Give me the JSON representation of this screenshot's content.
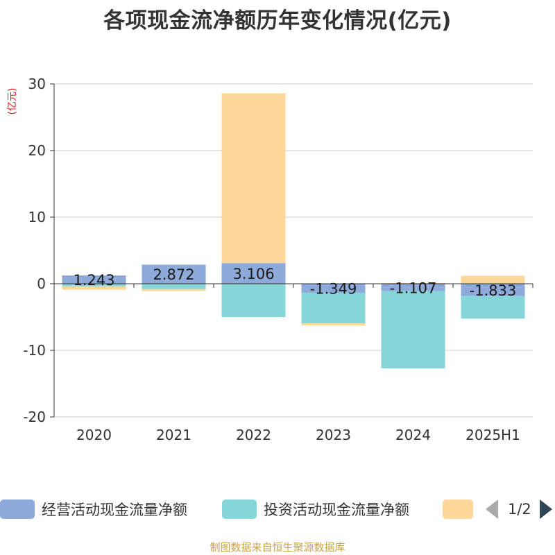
{
  "title": "各项现金流净额历年变化情况(亿元)",
  "unit_label": "(亿元)",
  "source": "制图数据来自恒生聚源数据库",
  "pager": {
    "text": "1/2"
  },
  "colors": {
    "operating": "#8eaadb",
    "investing": "#86d5d8",
    "financing": "#fdd89a",
    "unit_label": "#e8131c",
    "axis": "#333333",
    "grid": "#cccccc"
  },
  "chart_data": {
    "type": "bar",
    "stacked": true,
    "categories": [
      "2020",
      "2021",
      "2022",
      "2023",
      "2024",
      "2025H1"
    ],
    "ylim": [
      -20,
      30
    ],
    "yticks": [
      -20,
      -10,
      0,
      10,
      20,
      30
    ],
    "series": [
      {
        "name": "经营活动现金流量净额",
        "color_key": "operating",
        "values": [
          1.243,
          2.872,
          3.106,
          -1.349,
          -1.107,
          -1.833
        ],
        "labels": [
          "1.243",
          "2.872",
          "3.106",
          "-1.349",
          "-1.107",
          "-1.833"
        ]
      },
      {
        "name": "投资活动现金流量净额",
        "color_key": "investing",
        "values": [
          -0.4,
          -0.8,
          -5.0,
          -4.6,
          -11.6,
          -3.4
        ]
      },
      {
        "name": "",
        "color_key": "financing",
        "values": [
          -0.5,
          -0.3,
          25.5,
          -0.3,
          0.1,
          1.2
        ]
      }
    ]
  }
}
